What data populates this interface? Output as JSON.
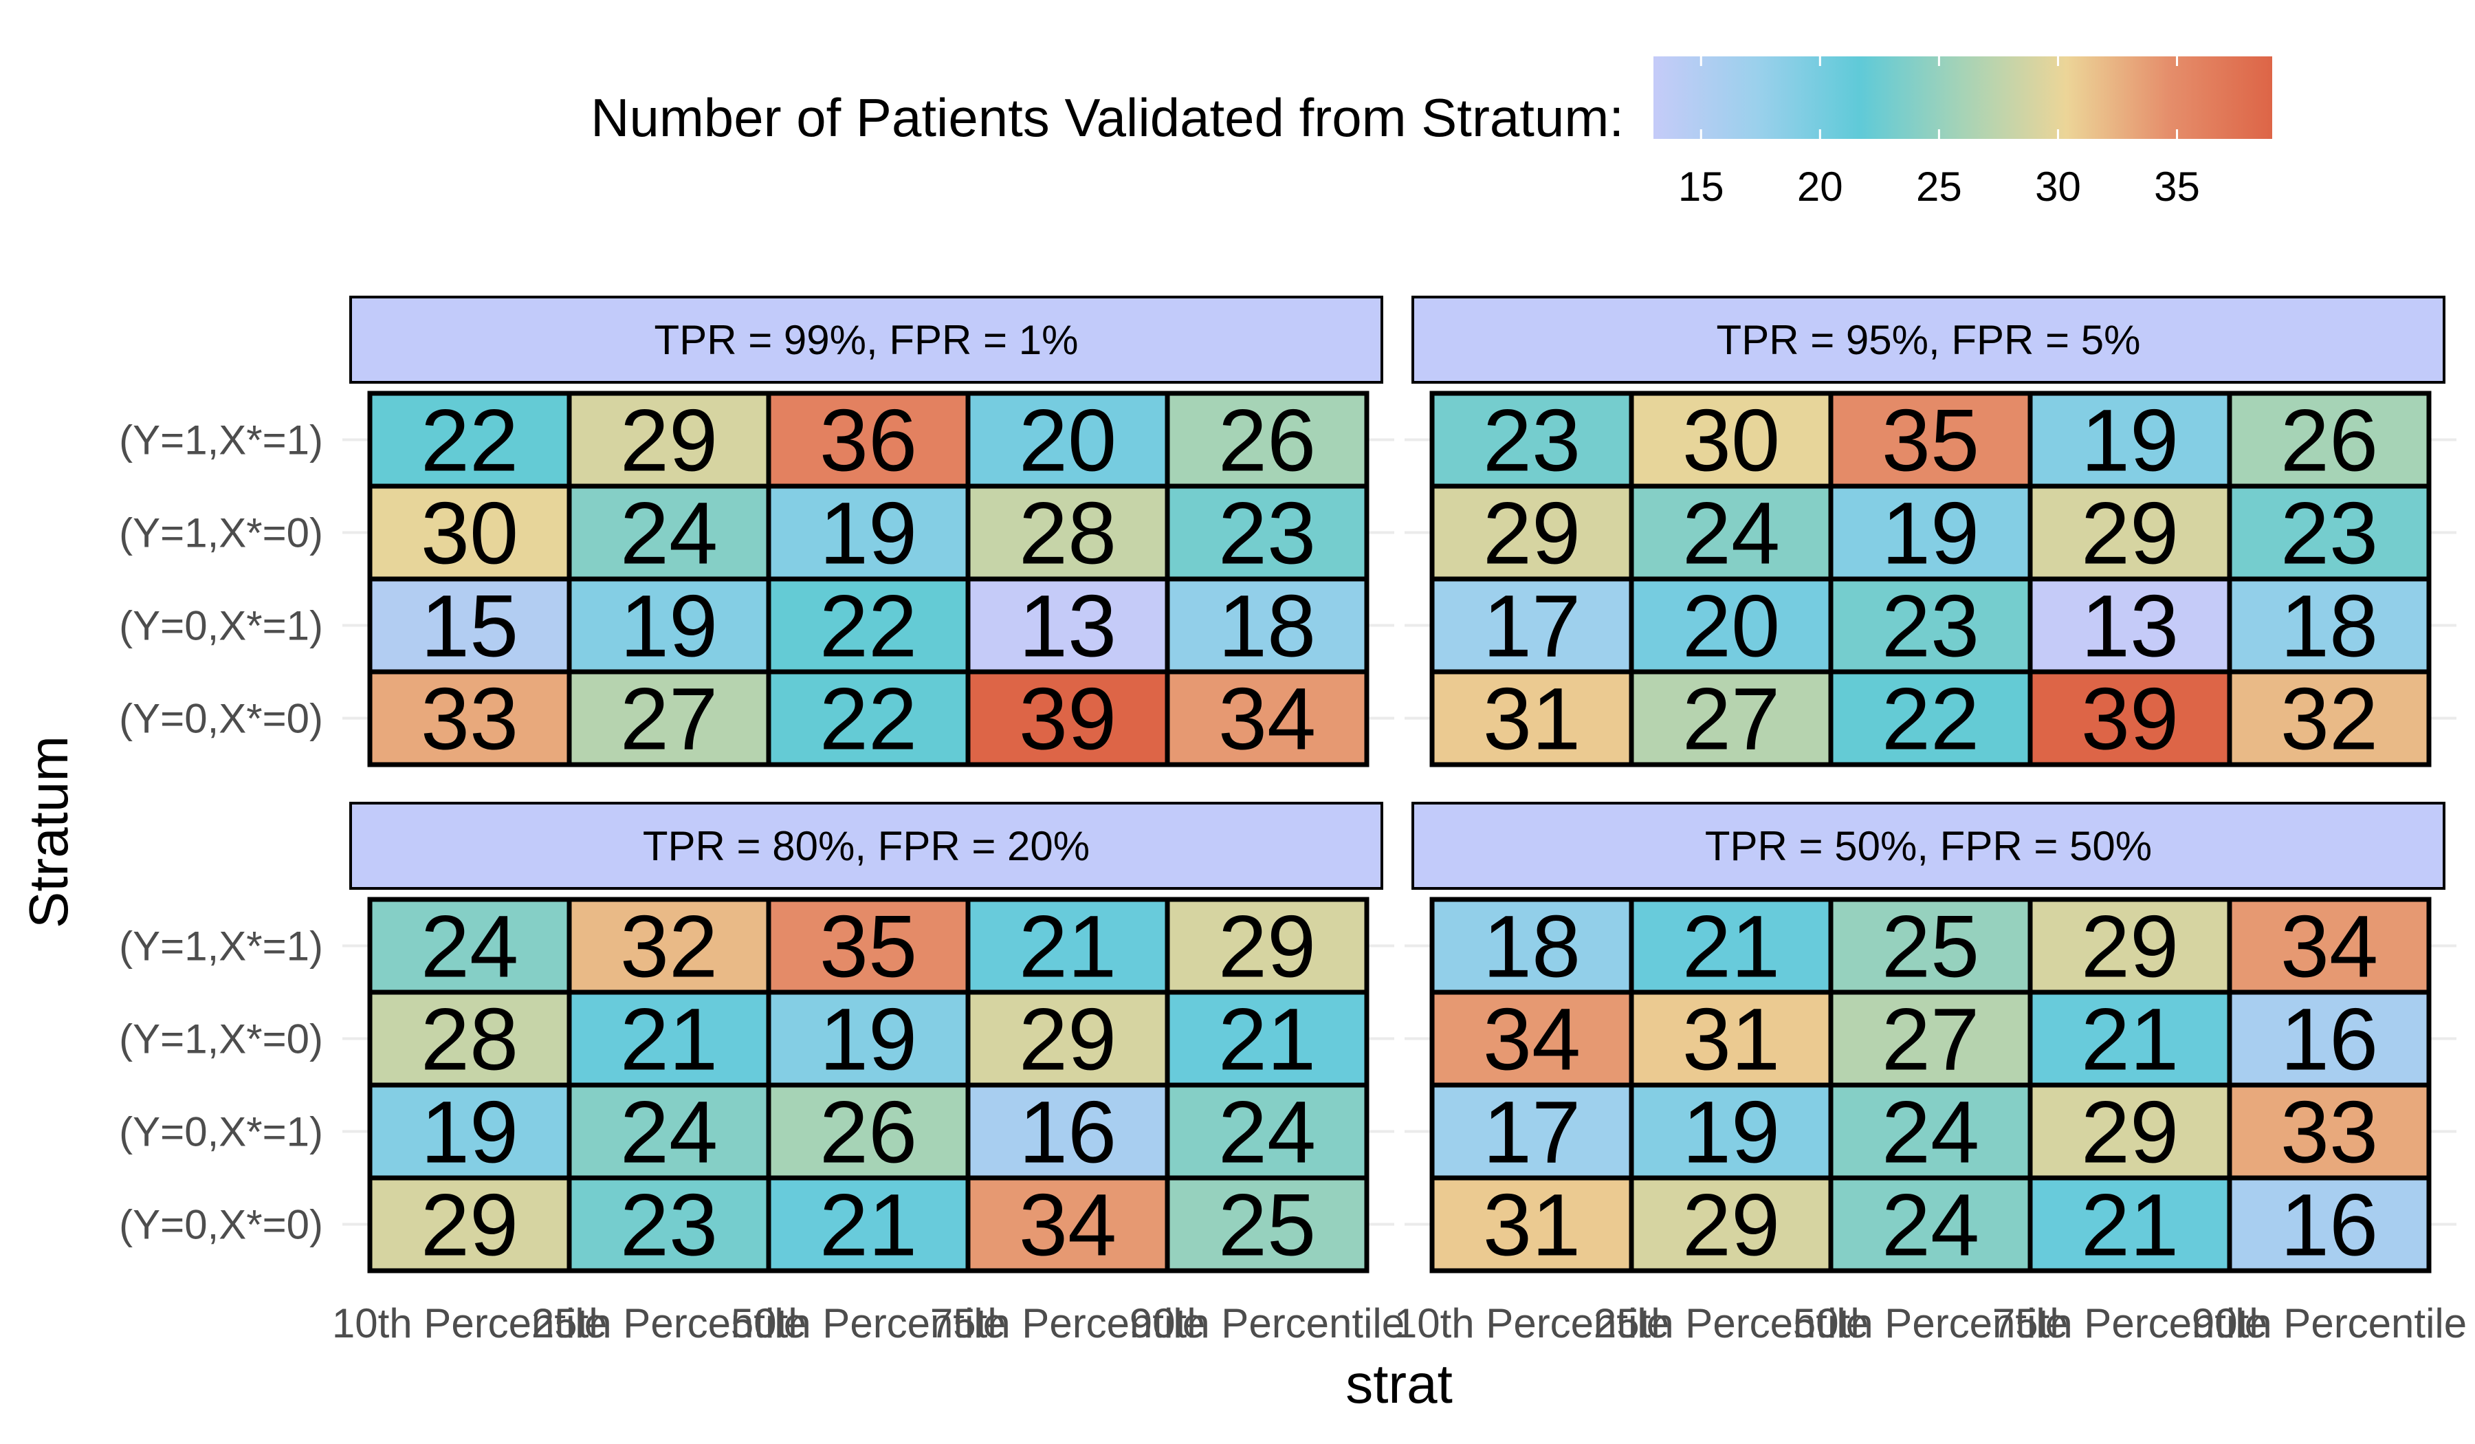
{
  "chart_data": {
    "type": "heatmap",
    "title": "",
    "xlabel": "strat",
    "ylabel": "Stratum",
    "x_categories": [
      "10th Percentile",
      "25th Percentile",
      "50th Percentile",
      "75th Percentile",
      "90th Percentile"
    ],
    "y_categories": [
      "(Y=1,X*=1)",
      "(Y=1,X*=0)",
      "(Y=0,X*=1)",
      "(Y=0,X*=0)"
    ],
    "legend": {
      "title": "Number of Patients Validated from Stratum:",
      "position": "top",
      "range": [
        13,
        39
      ],
      "ticks": [
        "15",
        "20",
        "25",
        "30",
        "35"
      ],
      "tick_values": [
        15,
        20,
        25,
        30,
        35
      ],
      "colors": [
        "#c5cbf8",
        "#9bd0ec",
        "#5fcad8",
        "#a6d3b6",
        "#ecd598",
        "#e58e6b",
        "#dd6547"
      ]
    },
    "strip_color": "#c2cbfa",
    "panels": [
      {
        "title": "TPR = 99%, FPR = 1%",
        "values": [
          [
            22,
            29,
            36,
            20,
            26
          ],
          [
            30,
            24,
            19,
            28,
            23
          ],
          [
            15,
            19,
            22,
            13,
            18
          ],
          [
            33,
            27,
            22,
            39,
            34
          ]
        ]
      },
      {
        "title": "TPR = 95%, FPR = 5%",
        "values": [
          [
            23,
            30,
            35,
            19,
            26
          ],
          [
            29,
            24,
            19,
            29,
            23
          ],
          [
            17,
            20,
            23,
            13,
            18
          ],
          [
            31,
            27,
            22,
            39,
            32
          ]
        ]
      },
      {
        "title": "TPR = 80%, FPR = 20%",
        "values": [
          [
            24,
            32,
            35,
            21,
            29
          ],
          [
            28,
            21,
            19,
            29,
            21
          ],
          [
            19,
            24,
            26,
            16,
            24
          ],
          [
            29,
            23,
            21,
            34,
            25
          ]
        ]
      },
      {
        "title": "TPR = 50%, FPR = 50%",
        "values": [
          [
            18,
            21,
            25,
            29,
            34
          ],
          [
            34,
            31,
            27,
            21,
            16
          ],
          [
            17,
            19,
            24,
            29,
            33
          ],
          [
            31,
            29,
            24,
            21,
            16
          ]
        ]
      }
    ]
  }
}
